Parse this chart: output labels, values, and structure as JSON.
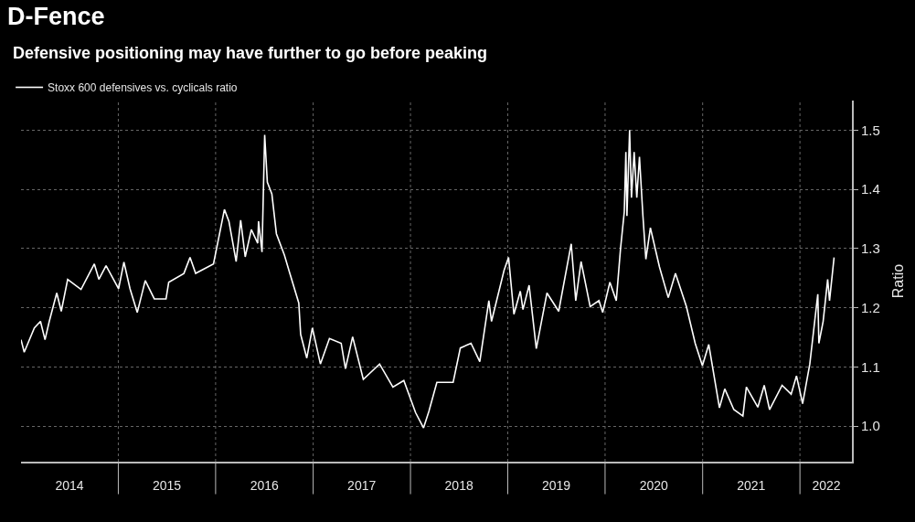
{
  "chart_data": {
    "type": "line",
    "title": "D-Fence",
    "subtitle": "Defensive positioning may have further to go before peaking",
    "ylabel": "Ratio",
    "x": [
      "2014-01-01",
      "2014-01-13",
      "2014-02-20",
      "2014-03-15",
      "2014-04-01",
      "2014-04-17",
      "2014-05-15",
      "2014-06-01",
      "2014-06-25",
      "2014-08-14",
      "2014-10-03",
      "2014-10-20",
      "2014-11-16",
      "2015-01-02",
      "2015-01-22",
      "2015-02-14",
      "2015-03-13",
      "2015-04-12",
      "2015-05-16",
      "2015-06-29",
      "2015-07-09",
      "2015-09-04",
      "2015-09-27",
      "2015-10-18",
      "2015-12-24",
      "2016-02-03",
      "2016-02-20",
      "2016-03-18",
      "2016-04-04",
      "2016-04-21",
      "2016-05-14",
      "2016-06-07",
      "2016-06-10",
      "2016-06-23",
      "2016-07-03",
      "2016-07-13",
      "2016-07-30",
      "2016-08-16",
      "2016-09-15",
      "2016-10-02",
      "2016-11-08",
      "2016-11-15",
      "2016-12-08",
      "2016-12-29",
      "2017-01-28",
      "2017-03-03",
      "2017-04-16",
      "2017-05-02",
      "2017-05-29",
      "2017-07-08",
      "2017-09-07",
      "2017-10-27",
      "2017-12-07",
      "2018-01-20",
      "2018-02-19",
      "2018-03-11",
      "2018-04-10",
      "2018-06-10",
      "2018-07-07",
      "2018-08-16",
      "2018-09-18",
      "2018-10-22",
      "2018-11-01",
      "2018-12-18",
      "2019-01-04",
      "2019-01-24",
      "2019-02-17",
      "2019-02-27",
      "2019-03-22",
      "2019-04-18",
      "2019-05-28",
      "2019-07-11",
      "2019-08-27",
      "2019-09-13",
      "2019-10-03",
      "2019-11-06",
      "2019-12-09",
      "2019-12-23",
      "2020-01-19",
      "2020-02-12",
      "2020-02-28",
      "2020-03-13",
      "2020-03-19",
      "2020-03-23",
      "2020-04-02",
      "2020-04-09",
      "2020-04-19",
      "2020-04-29",
      "2020-05-09",
      "2020-05-22",
      "2020-06-02",
      "2020-06-19",
      "2020-07-23",
      "2020-08-25",
      "2020-09-21",
      "2020-11-01",
      "2020-12-04",
      "2020-12-31",
      "2021-01-24",
      "2021-03-05",
      "2021-03-25",
      "2021-04-28",
      "2021-06-01",
      "2021-06-14",
      "2021-07-27",
      "2021-08-20",
      "2021-09-09",
      "2021-10-26",
      "2021-11-29",
      "2021-12-19",
      "2022-01-11",
      "2022-02-07",
      "2022-03-09",
      "2022-03-13",
      "2022-03-29",
      "2022-04-15",
      "2022-04-22",
      "2022-05-09"
    ],
    "series": [
      {
        "name": "Stoxx 600 defensives vs. cyclicals ratio",
        "color": "#ffffff",
        "values": [
          1.146,
          1.125,
          1.166,
          1.177,
          1.146,
          1.177,
          1.225,
          1.194,
          1.248,
          1.231,
          1.274,
          1.248,
          1.271,
          1.232,
          1.277,
          1.232,
          1.192,
          1.246,
          1.215,
          1.215,
          1.243,
          1.258,
          1.285,
          1.258,
          1.274,
          1.366,
          1.346,
          1.278,
          1.348,
          1.286,
          1.332,
          1.309,
          1.346,
          1.294,
          1.492,
          1.412,
          1.392,
          1.325,
          1.289,
          1.263,
          1.208,
          1.155,
          1.115,
          1.166,
          1.105,
          1.148,
          1.14,
          1.097,
          1.151,
          1.079,
          1.105,
          1.066,
          1.077,
          1.023,
          0.997,
          1.025,
          1.074,
          1.074,
          1.132,
          1.14,
          1.109,
          1.212,
          1.177,
          1.263,
          1.285,
          1.189,
          1.228,
          1.197,
          1.238,
          1.131,
          1.225,
          1.194,
          1.308,
          1.212,
          1.278,
          1.202,
          1.212,
          1.192,
          1.243,
          1.212,
          1.3,
          1.362,
          1.463,
          1.355,
          1.5,
          1.386,
          1.463,
          1.386,
          1.455,
          1.355,
          1.282,
          1.335,
          1.269,
          1.217,
          1.258,
          1.202,
          1.14,
          1.102,
          1.138,
          1.031,
          1.063,
          1.028,
          1.017,
          1.066,
          1.032,
          1.069,
          1.028,
          1.069,
          1.054,
          1.085,
          1.038,
          1.105,
          1.223,
          1.14,
          1.177,
          1.248,
          1.212,
          1.285
        ]
      }
    ],
    "xlim": [
      "2014-01-01",
      "2022-07-15"
    ],
    "xticks": [
      {
        "value": "2014-07-02",
        "label": "2014"
      },
      {
        "value": "2015-01-01",
        "label": null
      },
      {
        "value": "2015-07-02",
        "label": "2015"
      },
      {
        "value": "2016-01-01",
        "label": null
      },
      {
        "value": "2016-07-02",
        "label": "2016"
      },
      {
        "value": "2017-01-01",
        "label": null
      },
      {
        "value": "2017-07-02",
        "label": "2017"
      },
      {
        "value": "2018-01-01",
        "label": null
      },
      {
        "value": "2018-07-02",
        "label": "2018"
      },
      {
        "value": "2019-01-01",
        "label": null
      },
      {
        "value": "2019-07-02",
        "label": "2019"
      },
      {
        "value": "2020-01-01",
        "label": null
      },
      {
        "value": "2020-07-02",
        "label": "2020"
      },
      {
        "value": "2021-01-01",
        "label": null
      },
      {
        "value": "2021-07-02",
        "label": "2021"
      },
      {
        "value": "2022-01-01",
        "label": null
      },
      {
        "value": "2022-04-10",
        "label": "2022"
      }
    ],
    "ylim": [
      0.94,
      1.55
    ],
    "yticks": [
      {
        "value": 1.0,
        "label": "1.0"
      },
      1.1,
      1.2,
      1.3,
      1.4,
      1.5
    ],
    "grid": true,
    "legend": "top left",
    "marker": "none",
    "line_style": "solid"
  }
}
